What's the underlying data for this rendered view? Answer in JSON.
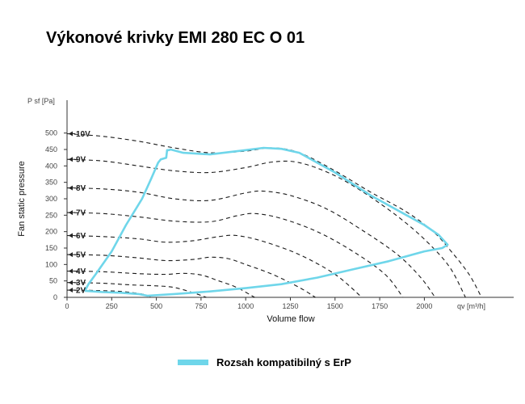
{
  "title": "Výkonové krivky EMI 280 EC O 01",
  "chart_data": {
    "type": "line",
    "xlabel": "Volume flow",
    "ylabel": "Fan static pressure",
    "y_unit_label": "P sf [Pa]",
    "x_unit_label": "qv [m³/h]",
    "xlim": [
      0,
      2500
    ],
    "ylim": [
      0,
      600
    ],
    "x_ticks": [
      "0",
      "250",
      "500",
      "750",
      "1000",
      "1250",
      "1500",
      "1750",
      "2000"
    ],
    "y_ticks": [
      "0",
      "50",
      "100",
      "150",
      "200",
      "250",
      "300",
      "350",
      "400",
      "450",
      "500"
    ],
    "grid": false,
    "series": [
      {
        "name": "10V",
        "label_y": 498,
        "points": [
          [
            0,
            498
          ],
          [
            200,
            490
          ],
          [
            400,
            475
          ],
          [
            600,
            455
          ],
          [
            800,
            440
          ],
          [
            1000,
            445
          ],
          [
            1150,
            455
          ],
          [
            1300,
            440
          ],
          [
            1500,
            385
          ],
          [
            1700,
            320
          ],
          [
            1900,
            260
          ],
          [
            2050,
            200
          ],
          [
            2150,
            140
          ],
          [
            2250,
            70
          ],
          [
            2320,
            0
          ]
        ]
      },
      {
        "name": "9V",
        "label_y": 420,
        "points": [
          [
            0,
            420
          ],
          [
            200,
            415
          ],
          [
            400,
            400
          ],
          [
            600,
            385
          ],
          [
            800,
            380
          ],
          [
            1000,
            395
          ],
          [
            1150,
            412
          ],
          [
            1300,
            410
          ],
          [
            1500,
            370
          ],
          [
            1700,
            305
          ],
          [
            1900,
            225
          ],
          [
            2050,
            150
          ],
          [
            2150,
            85
          ],
          [
            2230,
            0
          ]
        ]
      },
      {
        "name": "8V",
        "label_y": 333,
        "points": [
          [
            0,
            333
          ],
          [
            200,
            330
          ],
          [
            400,
            320
          ],
          [
            600,
            300
          ],
          [
            800,
            295
          ],
          [
            1000,
            318
          ],
          [
            1100,
            323
          ],
          [
            1250,
            310
          ],
          [
            1450,
            270
          ],
          [
            1650,
            205
          ],
          [
            1850,
            130
          ],
          [
            1980,
            60
          ],
          [
            2060,
            0
          ]
        ]
      },
      {
        "name": "7V",
        "label_y": 258,
        "points": [
          [
            0,
            258
          ],
          [
            200,
            255
          ],
          [
            400,
            245
          ],
          [
            600,
            232
          ],
          [
            800,
            230
          ],
          [
            950,
            248
          ],
          [
            1050,
            255
          ],
          [
            1200,
            240
          ],
          [
            1400,
            200
          ],
          [
            1600,
            140
          ],
          [
            1780,
            70
          ],
          [
            1880,
            0
          ]
        ]
      },
      {
        "name": "6V",
        "label_y": 188,
        "points": [
          [
            0,
            188
          ],
          [
            200,
            185
          ],
          [
            400,
            178
          ],
          [
            550,
            168
          ],
          [
            700,
            172
          ],
          [
            850,
            185
          ],
          [
            950,
            188
          ],
          [
            1100,
            170
          ],
          [
            1300,
            130
          ],
          [
            1500,
            70
          ],
          [
            1650,
            0
          ]
        ]
      },
      {
        "name": "5V",
        "label_y": 130,
        "points": [
          [
            0,
            130
          ],
          [
            200,
            128
          ],
          [
            400,
            120
          ],
          [
            550,
            112
          ],
          [
            700,
            115
          ],
          [
            800,
            122
          ],
          [
            900,
            118
          ],
          [
            1000,
            100
          ],
          [
            1150,
            70
          ],
          [
            1300,
            30
          ],
          [
            1390,
            0
          ]
        ]
      },
      {
        "name": "4V",
        "label_y": 80,
        "points": [
          [
            0,
            80
          ],
          [
            200,
            78
          ],
          [
            400,
            72
          ],
          [
            550,
            70
          ],
          [
            650,
            73
          ],
          [
            750,
            68
          ],
          [
            850,
            50
          ],
          [
            950,
            30
          ],
          [
            1050,
            0
          ]
        ]
      },
      {
        "name": "3V",
        "label_y": 45,
        "points": [
          [
            0,
            45
          ],
          [
            200,
            43
          ],
          [
            350,
            38
          ],
          [
            500,
            35
          ],
          [
            600,
            30
          ],
          [
            700,
            15
          ],
          [
            780,
            0
          ]
        ]
      },
      {
        "name": "2V",
        "label_y": 22,
        "points": [
          [
            0,
            22
          ],
          [
            150,
            21
          ],
          [
            300,
            18
          ],
          [
            420,
            10
          ],
          [
            480,
            0
          ]
        ]
      }
    ],
    "erp_range": {
      "name": "Rozsah kompatibilný s ErP",
      "color": "#6fd6ea",
      "points": [
        [
          100,
          20
        ],
        [
          120,
          40
        ],
        [
          160,
          70
        ],
        [
          250,
          140
        ],
        [
          330,
          220
        ],
        [
          420,
          300
        ],
        [
          470,
          360
        ],
        [
          510,
          410
        ],
        [
          525,
          420
        ],
        [
          555,
          425
        ],
        [
          560,
          448
        ],
        [
          570,
          448
        ],
        [
          580,
          450
        ],
        [
          650,
          440
        ],
        [
          800,
          435
        ],
        [
          1000,
          448
        ],
        [
          1100,
          455
        ],
        [
          1200,
          452
        ],
        [
          1300,
          440
        ],
        [
          1500,
          380
        ],
        [
          1700,
          310
        ],
        [
          1900,
          250
        ],
        [
          2000,
          220
        ],
        [
          2080,
          190
        ],
        [
          2130,
          160
        ],
        [
          2100,
          150
        ],
        [
          2000,
          140
        ],
        [
          1800,
          110
        ],
        [
          1600,
          85
        ],
        [
          1400,
          60
        ],
        [
          1200,
          40
        ],
        [
          1000,
          28
        ],
        [
          800,
          18
        ],
        [
          600,
          10
        ],
        [
          450,
          5
        ],
        [
          400,
          10
        ],
        [
          300,
          14
        ],
        [
          200,
          16
        ],
        [
          100,
          20
        ]
      ]
    }
  }
}
